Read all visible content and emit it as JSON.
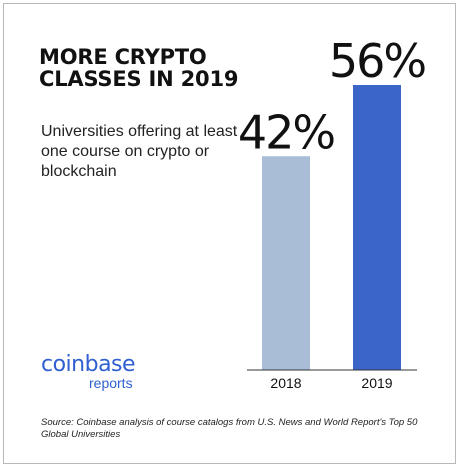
{
  "header": {
    "title": "MORE CRYPTO CLASSES IN 2019",
    "subtitle": "Universities offering at least one course on crypto or blockchain"
  },
  "logo": {
    "main": "coinbase",
    "sub": "reports"
  },
  "source": "Source: Coinbase analysis of course catalogs from U.S. News and World Report's Top 50 Global Universities",
  "colors": {
    "bar_2018": "#a9bdd6",
    "bar_2019": "#3b65c9",
    "logo": "#2f5fd0"
  },
  "chart_data": {
    "type": "bar",
    "title": "MORE CRYPTO CLASSES IN 2019",
    "subtitle": "Universities offering at least one course on crypto or blockchain",
    "categories": [
      "2018",
      "2019"
    ],
    "values": [
      42,
      56
    ],
    "data_labels": [
      "42%",
      "56%"
    ],
    "ylim": [
      0,
      60
    ],
    "grid": false,
    "legend": "none"
  }
}
